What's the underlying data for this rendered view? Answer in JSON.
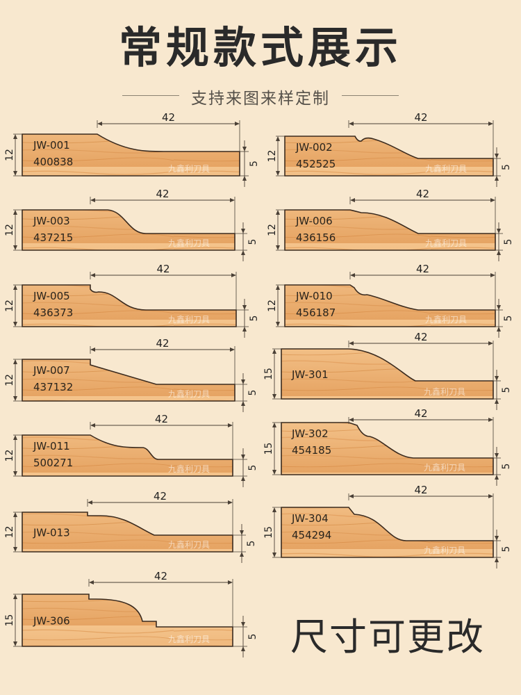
{
  "header": {
    "title": "常规款式展示",
    "subtitle": "支持来图来样定制"
  },
  "footer_text": "尺寸可更改",
  "watermark": "九鑫利刀具",
  "colors": {
    "background": "#f8e8cf",
    "wood_light": "#f4c48c",
    "wood_dark": "#dc9046",
    "outline": "#3a2a1e"
  },
  "profiles": [
    {
      "code": "JW-001",
      "number": "400838",
      "width": "42",
      "height": "12",
      "step": "5"
    },
    {
      "code": "JW-002",
      "number": "452525",
      "width": "42",
      "height": "12",
      "step": "5"
    },
    {
      "code": "JW-003",
      "number": "437215",
      "width": "42",
      "height": "12",
      "step": "5"
    },
    {
      "code": "JW-006",
      "number": "436156",
      "width": "42",
      "height": "12",
      "step": "5"
    },
    {
      "code": "JW-005",
      "number": "436373",
      "width": "42",
      "height": "12",
      "step": "5"
    },
    {
      "code": "JW-010",
      "number": "456187",
      "width": "42",
      "height": "12",
      "step": "5"
    },
    {
      "code": "JW-007",
      "number": "437132",
      "width": "42",
      "height": "12",
      "step": "5"
    },
    {
      "code": "JW-301",
      "number": "",
      "width": "42",
      "height": "15",
      "step": "5"
    },
    {
      "code": "JW-011",
      "number": "500271",
      "width": "42",
      "height": "12",
      "step": "5"
    },
    {
      "code": "JW-302",
      "number": "454185",
      "width": "42",
      "height": "15",
      "step": "5"
    },
    {
      "code": "JW-013",
      "number": "",
      "width": "42",
      "height": "12",
      "step": "5"
    },
    {
      "code": "JW-304",
      "number": "454294",
      "width": "42",
      "height": "15",
      "step": "5"
    },
    {
      "code": "JW-306",
      "number": "",
      "width": "42",
      "height": "15",
      "step": "5"
    }
  ]
}
